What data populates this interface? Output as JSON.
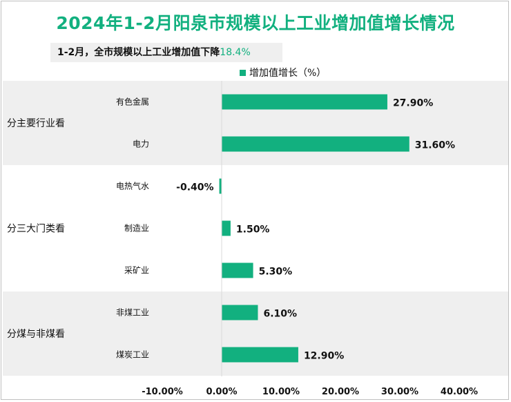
{
  "title": "2024年1-2月阳泉市规模以上工业增加值增长情况",
  "subtitle": {
    "text": "1-2月，全市规模以上工业增加值下降",
    "highlight": "18.4%"
  },
  "colors": {
    "accent": "#12b07f",
    "bar": "#12b07f",
    "group_band": "#efefef"
  },
  "chart_data": {
    "type": "bar",
    "orientation": "horizontal",
    "legend": {
      "label": "增加值增长（%）",
      "position": "top"
    },
    "xlim": [
      -10,
      40
    ],
    "x_ticks": [
      -10,
      0,
      10,
      20,
      30,
      40
    ],
    "x_tick_labels": [
      "-10.00%",
      "0.00%",
      "10.00%",
      "20.00%",
      "30.00%",
      "40.00%"
    ],
    "grid": false,
    "groups": [
      {
        "name": "分主要行业看",
        "shaded": true,
        "items": [
          {
            "category": "有色金属",
            "value": 27.9,
            "label": "27.90%"
          },
          {
            "category": "电力",
            "value": 31.6,
            "label": "31.60%"
          }
        ]
      },
      {
        "name": "分三大门类看",
        "shaded": false,
        "items": [
          {
            "category": "电热气水",
            "value": -0.4,
            "label": "-0.40%"
          },
          {
            "category": "制造业",
            "value": 1.5,
            "label": "1.50%"
          },
          {
            "category": "采矿业",
            "value": 5.3,
            "label": "5.30%"
          }
        ]
      },
      {
        "name": "分煤与非煤看",
        "shaded": true,
        "items": [
          {
            "category": "非煤工业",
            "value": 6.1,
            "label": "6.10%"
          },
          {
            "category": "煤炭工业",
            "value": 12.9,
            "label": "12.90%"
          }
        ]
      }
    ]
  }
}
